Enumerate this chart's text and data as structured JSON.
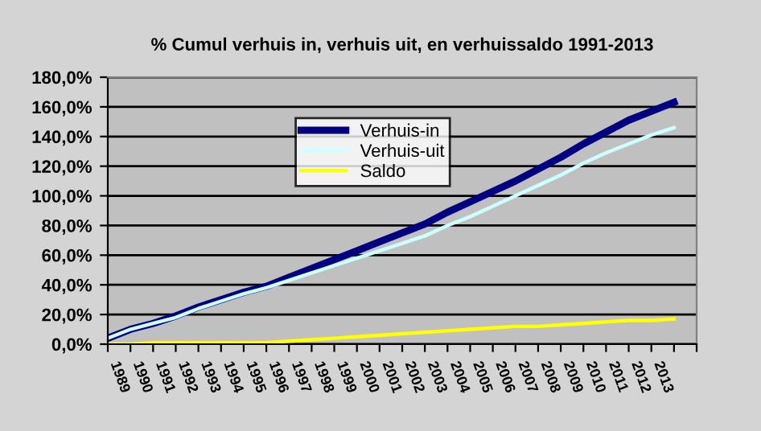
{
  "chart_data": {
    "type": "line",
    "title": "% Cumul verhuis in, verhuis uit, en verhuissaldo 1991-2013",
    "x": [
      1989,
      1990,
      1991,
      1992,
      1993,
      1994,
      1995,
      1996,
      1997,
      1998,
      1999,
      2000,
      2001,
      2002,
      2003,
      2004,
      2005,
      2006,
      2007,
      2008,
      2009,
      2010,
      2011,
      2012,
      2013,
      2014
    ],
    "series": [
      {
        "name": "Verhuis-in",
        "color": "#000080",
        "values": [
          4,
          10,
          14,
          19,
          25,
          30,
          35,
          39,
          45,
          51,
          57,
          63,
          69,
          75,
          81,
          89,
          96,
          103,
          110,
          118,
          126,
          135,
          143,
          151,
          157,
          163
        ]
      },
      {
        "name": "Verhuis-uit",
        "color": "#ccffff",
        "values": [
          4,
          10,
          14,
          18,
          24,
          29,
          34,
          38,
          43,
          48,
          53,
          58,
          63,
          68,
          73,
          80,
          86,
          93,
          100,
          107,
          114,
          122,
          129,
          135,
          141,
          146
        ]
      },
      {
        "name": "Saldo",
        "color": "#ffff00",
        "values": [
          0,
          0,
          1,
          1,
          1,
          1,
          1,
          1,
          2,
          3,
          4,
          5,
          6,
          7,
          8,
          9,
          10,
          11,
          12,
          12,
          13,
          14,
          15,
          16,
          16,
          17
        ]
      }
    ],
    "xlim": [
      1989,
      2015
    ],
    "xticks": [
      1989,
      1990,
      1991,
      1992,
      1993,
      1994,
      1995,
      1996,
      1997,
      1998,
      1999,
      2000,
      2001,
      2002,
      2003,
      2004,
      2005,
      2006,
      2007,
      2008,
      2009,
      2010,
      2011,
      2012,
      2013,
      {
        "value": 2014,
        "label": null
      },
      {
        "value": 2015,
        "label": null
      }
    ],
    "ylim": [
      0,
      180
    ],
    "yticks": [
      {
        "value": 0,
        "label": "0,0%"
      },
      {
        "value": 20,
        "label": "20,0%"
      },
      {
        "value": 40,
        "label": "40,0%"
      },
      {
        "value": 60,
        "label": "60,0%"
      },
      {
        "value": 80,
        "label": "80,0%"
      },
      {
        "value": 100,
        "label": "100,0%"
      },
      {
        "value": 120,
        "label": "120,0%"
      },
      {
        "value": 140,
        "label": "140,0%"
      },
      {
        "value": 160,
        "label": "160,0%"
      },
      {
        "value": 180,
        "label": "180,0%"
      }
    ],
    "grid": "y",
    "legend": "top",
    "marker": "none",
    "line_style": "solid"
  }
}
